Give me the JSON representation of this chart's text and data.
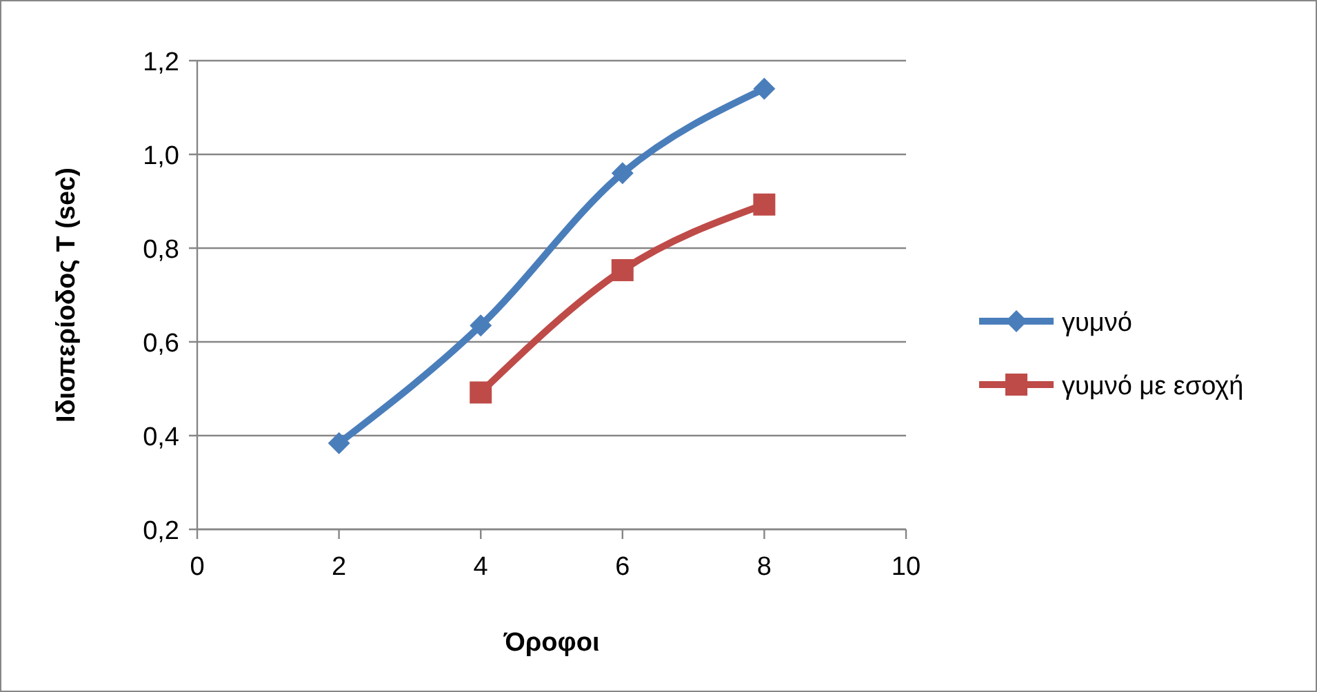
{
  "chart_data": {
    "type": "line",
    "xlabel": "Όροφοι",
    "ylabel": "Ιδιοπερίοδος T (sec)",
    "xlim": [
      0,
      10
    ],
    "xticks": [
      0,
      2,
      4,
      6,
      8,
      10
    ],
    "ylim": [
      0.2,
      1.2
    ],
    "yticks": [
      {
        "value": 0.2,
        "label": "0,2"
      },
      {
        "value": 0.4,
        "label": "0,4"
      },
      {
        "value": 0.6,
        "label": "0,6"
      },
      {
        "value": 0.8,
        "label": "0,8"
      },
      {
        "value": 1.0,
        "label": "1,0"
      },
      {
        "value": 1.2,
        "label": "1,2"
      }
    ],
    "grid": "y",
    "legend": "right",
    "series": [
      {
        "name": "γυμνό",
        "color": "#4a7ebb",
        "x": [
          2,
          4,
          6,
          8
        ],
        "values": [
          0.384,
          0.635,
          0.96,
          1.14
        ],
        "marker": "diamond"
      },
      {
        "name": "γυμνό με εσοχή",
        "color": "#be4b48",
        "x": [
          4,
          6,
          8
        ],
        "values": [
          0.492,
          0.753,
          0.893
        ],
        "marker": "square"
      }
    ]
  }
}
